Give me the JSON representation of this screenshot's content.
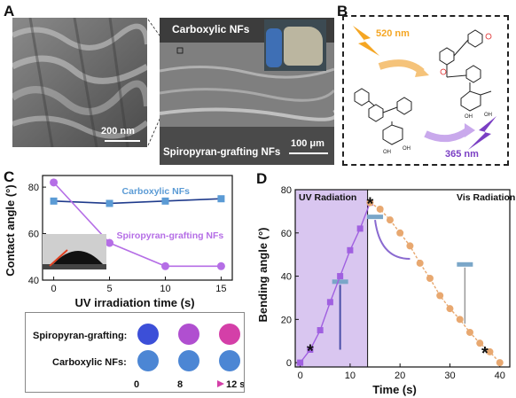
{
  "panels": {
    "a": "A",
    "b": "B",
    "c": "C",
    "d": "D"
  },
  "panel_a": {
    "left_scale": "200 nm",
    "right_scale": "100 μm",
    "top_label": "Carboxylic NFs",
    "bottom_label": "Spiropyran-grafting NFs"
  },
  "panel_b": {
    "light1": "520 nm",
    "light2": "365 nm",
    "colors": {
      "light1": "#f5a623",
      "light2": "#7b3fc4"
    }
  },
  "grid": {
    "row1": "Spiropyran-grafting:",
    "row2": "Carboxylic NFs:",
    "t_start": "0",
    "t_mid": "8",
    "t_end": "12 s",
    "row1_colors": [
      "#3c4fd8",
      "#b04fd0",
      "#d43fa8"
    ],
    "row2_colors": [
      "#4c86d4",
      "#4c86d4",
      "#4c86d4"
    ]
  },
  "chart_data": [
    {
      "type": "line",
      "xlabel": "UV irradiation time (s)",
      "ylabel": "Contact angle (°)",
      "xlim": [
        -1,
        16
      ],
      "ylim": [
        40,
        85
      ],
      "xticks": [
        0,
        5,
        10,
        15
      ],
      "yticks": [
        40,
        60,
        80
      ],
      "series": [
        {
          "name": "Carboxylic NFs",
          "x": [
            0,
            5,
            10,
            15
          ],
          "values": [
            74,
            73,
            74,
            75
          ],
          "color": "#5b9bd5",
          "line": "#1f3b8c",
          "marker": "square"
        },
        {
          "name": "Spiropyran-grafting NFs",
          "x": [
            0,
            5,
            10,
            15
          ],
          "values": [
            82,
            56,
            46,
            46
          ],
          "color": "#b56ee6",
          "line": "#b56ee6",
          "marker": "circle"
        }
      ]
    },
    {
      "type": "line",
      "xlabel": "Time (s)",
      "ylabel": "Bending angle (°)",
      "xlim": [
        -1,
        42
      ],
      "ylim": [
        -2,
        80
      ],
      "xticks": [
        0,
        10,
        20,
        30,
        40
      ],
      "yticks": [
        0,
        20,
        40,
        60,
        80
      ],
      "region_uv_end": 13.5,
      "region_uv_label": "UV Radiation",
      "region_vis_label": "Vis Radiation",
      "series": [
        {
          "name": "UV",
          "x": [
            0,
            2,
            4,
            6,
            8,
            10,
            12,
            14
          ],
          "values": [
            0,
            6,
            15,
            28,
            40,
            52,
            62,
            74
          ],
          "color": "#a060e0"
        },
        {
          "name": "Vis",
          "x": [
            14,
            16,
            18,
            20,
            22,
            24,
            26,
            28,
            30,
            32,
            34,
            36,
            38,
            40
          ],
          "values": [
            74,
            71,
            66,
            60,
            54,
            46,
            39,
            31,
            25,
            20,
            14,
            9,
            5,
            0
          ],
          "color": "#e8a870"
        }
      ],
      "star_points": [
        {
          "x": 2,
          "y": 6
        },
        {
          "x": 14,
          "y": 74
        },
        {
          "x": 37,
          "y": 5
        }
      ]
    }
  ]
}
